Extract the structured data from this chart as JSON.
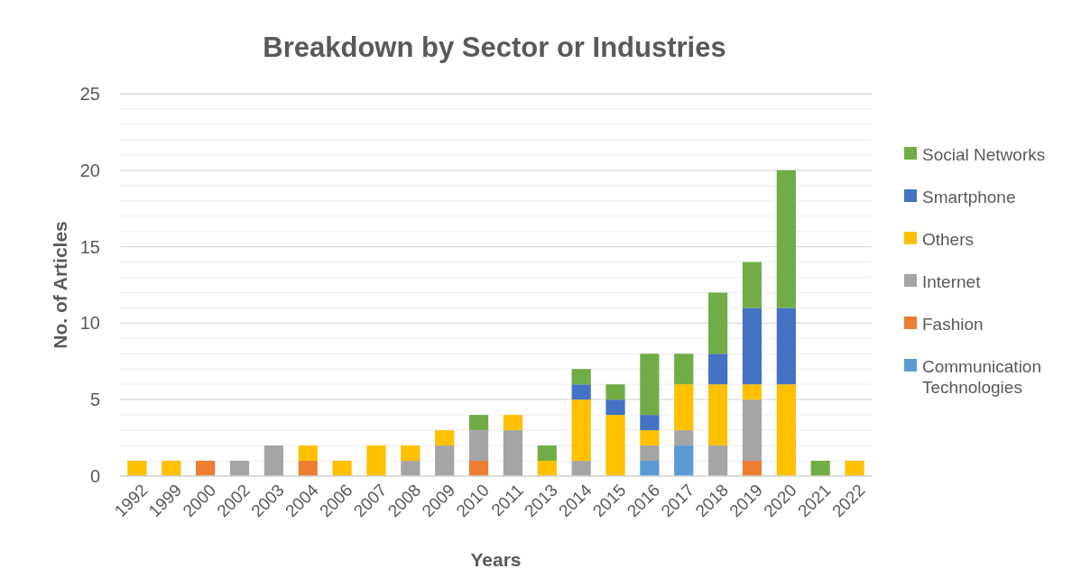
{
  "chart_data": {
    "type": "bar",
    "title": "Breakdown by Sector or Industries",
    "xlabel": "Years",
    "ylabel": "No. of Articles",
    "stacked": true,
    "legend": "right",
    "grid": "y",
    "categories": [
      "1992",
      "1999",
      "2000",
      "2002",
      "2003",
      "2004",
      "2006",
      "2007",
      "2008",
      "2009",
      "2010",
      "2011",
      "2013",
      "2014",
      "2015",
      "2016",
      "2017",
      "2018",
      "2019",
      "2020",
      "2021",
      "2022"
    ],
    "ylim": [
      0,
      25
    ],
    "yticks": [
      0,
      {
        "value": 1,
        "label": null
      },
      {
        "value": 2,
        "label": null
      },
      {
        "value": 3,
        "label": null
      },
      {
        "value": 4,
        "label": null
      },
      5,
      {
        "value": 6,
        "label": null
      },
      {
        "value": 7,
        "label": null
      },
      {
        "value": 8,
        "label": null
      },
      {
        "value": 9,
        "label": null
      },
      10,
      {
        "value": 11,
        "label": null
      },
      {
        "value": 12,
        "label": null
      },
      {
        "value": 13,
        "label": null
      },
      {
        "value": 14,
        "label": null
      },
      15,
      {
        "value": 16,
        "label": null
      },
      {
        "value": 17,
        "label": null
      },
      {
        "value": 18,
        "label": null
      },
      {
        "value": 19,
        "label": null
      },
      20,
      {
        "value": 21,
        "label": null
      },
      {
        "value": 22,
        "label": null
      },
      {
        "value": 23,
        "label": null
      },
      {
        "value": 24,
        "label": null
      },
      25
    ],
    "series": [
      {
        "name": "Communication Technologies",
        "color": "#5b9bd5",
        "values": [
          0,
          0,
          0,
          0,
          0,
          0,
          0,
          0,
          0,
          0,
          0,
          0,
          0,
          0,
          0,
          1,
          2,
          0,
          0,
          0,
          0,
          0
        ]
      },
      {
        "name": "Fashion",
        "color": "#ed7d31",
        "values": [
          0,
          0,
          1,
          0,
          0,
          1,
          0,
          0,
          0,
          0,
          1,
          0,
          0,
          0,
          0,
          0,
          0,
          0,
          1,
          0,
          0,
          0
        ]
      },
      {
        "name": "Internet",
        "color": "#a5a5a5",
        "values": [
          0,
          0,
          0,
          1,
          2,
          0,
          0,
          0,
          1,
          2,
          2,
          3,
          0,
          1,
          0,
          1,
          1,
          2,
          4,
          0,
          0,
          0
        ]
      },
      {
        "name": "Others",
        "color": "#ffc000",
        "values": [
          1,
          1,
          0,
          0,
          0,
          1,
          1,
          2,
          1,
          1,
          0,
          1,
          1,
          4,
          4,
          1,
          3,
          4,
          1,
          6,
          0,
          1
        ]
      },
      {
        "name": "Smartphone",
        "color": "#4472c4",
        "values": [
          0,
          0,
          0,
          0,
          0,
          0,
          0,
          0,
          0,
          0,
          0,
          0,
          0,
          1,
          1,
          1,
          0,
          2,
          5,
          5,
          0,
          0
        ]
      },
      {
        "name": "Social Networks",
        "color": "#70ad47",
        "values": [
          0,
          0,
          0,
          0,
          0,
          0,
          0,
          0,
          0,
          0,
          1,
          0,
          1,
          1,
          1,
          4,
          2,
          4,
          3,
          9,
          1,
          0
        ]
      }
    ]
  }
}
